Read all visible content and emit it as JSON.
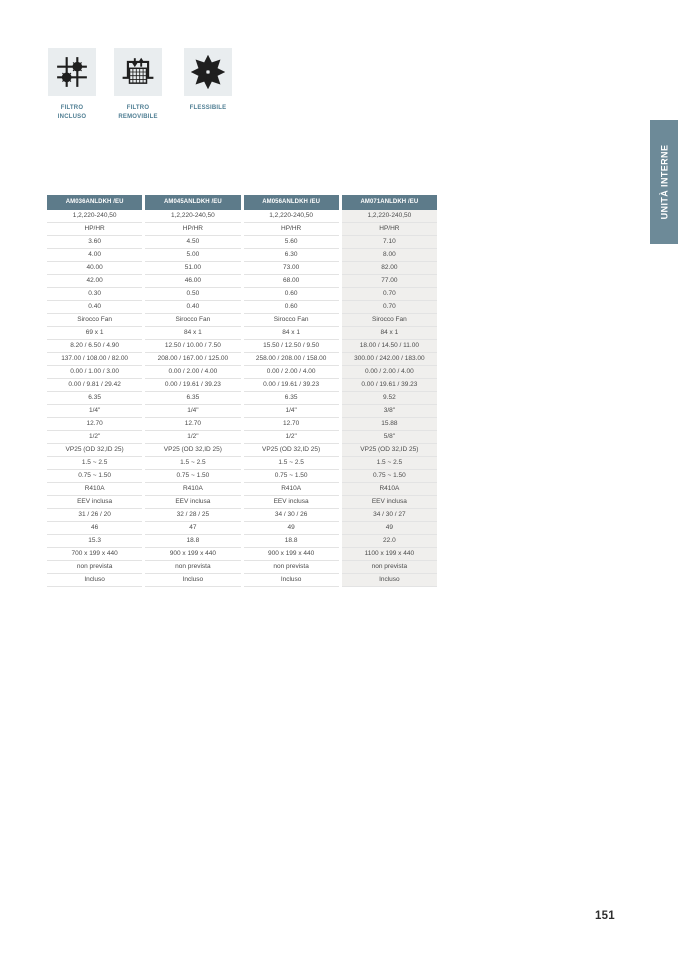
{
  "feature_icons": [
    {
      "icon": "filter-included-icon",
      "label": "FILTRO\nINCLUSO"
    },
    {
      "icon": "filter-removable-icon",
      "label": "FILTRO\nREMOVIBILE"
    },
    {
      "icon": "flexible-icon",
      "label": "FLESSIBILE"
    }
  ],
  "side_tab": {
    "label": "UNITÀ INTERNE"
  },
  "table": {
    "headers": [
      "AM036ANLDKH /EU",
      "AM045ANLDKH /EU",
      "AM056ANLDKH /EU",
      "AM071ANLDKH /EU"
    ],
    "rows": [
      [
        "1,2,220-240,50",
        "1,2,220-240,50",
        "1,2,220-240,50",
        "1,2,220-240,50"
      ],
      [
        "HP/HR",
        "HP/HR",
        "HP/HR",
        "HP/HR"
      ],
      [
        "3.60",
        "4.50",
        "5.60",
        "7.10"
      ],
      [
        "4.00",
        "5.00",
        "6.30",
        "8.00"
      ],
      [
        "40.00",
        "51.00",
        "73.00",
        "82.00"
      ],
      [
        "42.00",
        "46.00",
        "68.00",
        "77.00"
      ],
      [
        "0.30",
        "0.50",
        "0.60",
        "0.70"
      ],
      [
        "0.40",
        "0.40",
        "0.60",
        "0.70"
      ],
      [
        "Sirocco Fan",
        "Sirocco Fan",
        "Sirocco Fan",
        "Sirocco Fan"
      ],
      [
        "69 x 1",
        "84 x 1",
        "84 x 1",
        "84 x 1"
      ],
      [
        "8.20 / 6.50 / 4.90",
        "12.50 / 10.00 / 7.50",
        "15.50 / 12.50 / 9.50",
        "18.00 / 14.50 / 11.00"
      ],
      [
        "137.00 / 108.00 / 82.00",
        "208.00 / 167.00 / 125.00",
        "258.00 / 208.00 / 158.00",
        "300.00 / 242.00 / 183.00"
      ],
      [
        "0.00 / 1.00 / 3.00",
        "0.00 / 2.00 / 4.00",
        "0.00 / 2.00 / 4.00",
        "0.00 / 2.00 / 4.00"
      ],
      [
        "0.00 / 9.81 / 29.42",
        "0.00 / 19.61 / 39.23",
        "0.00 / 19.61 / 39.23",
        "0.00 / 19.61 / 39.23"
      ],
      [
        "6.35",
        "6.35",
        "6.35",
        "9.52"
      ],
      [
        "1/4\"",
        "1/4\"",
        "1/4\"",
        "3/8\""
      ],
      [
        "12.70",
        "12.70",
        "12.70",
        "15.88"
      ],
      [
        "1/2\"",
        "1/2\"",
        "1/2\"",
        "5/8\""
      ],
      [
        "VP25 (OD 32,ID 25)",
        "VP25 (OD 32,ID 25)",
        "VP25 (OD 32,ID 25)",
        "VP25 (OD 32,ID 25)"
      ],
      [
        "1.5 ~ 2.5",
        "1.5 ~ 2.5",
        "1.5 ~ 2.5",
        "1.5 ~ 2.5"
      ],
      [
        "0.75 ~ 1.50",
        "0.75 ~ 1.50",
        "0.75 ~ 1.50",
        "0.75 ~ 1.50"
      ],
      [
        "R410A",
        "R410A",
        "R410A",
        "R410A"
      ],
      [
        "EEV inclusa",
        "EEV inclusa",
        "EEV inclusa",
        "EEV inclusa"
      ],
      [
        "31 / 26 / 20",
        "32 / 28 / 25",
        "34 / 30 / 26",
        "34 / 30 / 27"
      ],
      [
        "46",
        "47",
        "49",
        "49"
      ],
      [
        "15.3",
        "18.8",
        "18.8",
        "22.0"
      ],
      [
        "700 x 199 x 440",
        "900 x 199 x 440",
        "900 x 199 x 440",
        "1100 x 199 x 440"
      ],
      [
        "non prevista",
        "non prevista",
        "non prevista",
        "non prevista"
      ],
      [
        "Incluso",
        "Incluso",
        "Incluso",
        "Incluso"
      ]
    ]
  },
  "page_number": "151",
  "colors": {
    "table_header_bg": "#5d7b8a",
    "side_tab_bg": "#6d8a98",
    "accent_label_text": "#4f7e93",
    "highlight_column_bg": "#f0efed",
    "icon_tile_bg": "#e9edef"
  }
}
